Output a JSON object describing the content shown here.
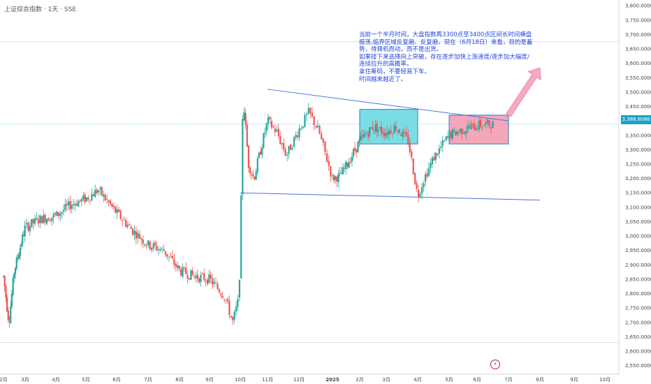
{
  "header": {
    "symbol_title": "上证综合指数 · 1天 · SSE"
  },
  "annotation": {
    "text": "当前一个半月时间，大盘指数再3300点至3400点区间长时间横盘振荡,临界区域反复磨、反复磨。现在（6月18日）来看，目的是蓄势，待择机而动，而不是出货。\n如果接下来选择向上突破，存在逐步加快上涨速度/逐步加大幅度/连续拉升的高概率。\n拿住筹码，不要轻易下车。\n时间越来越近了。"
  },
  "price_tag": {
    "label": "3,388.8086"
  },
  "colors": {
    "up": "#26a69a",
    "down": "#ef5350",
    "trend": "#4a73d8",
    "box1": "#4dd2dc",
    "box2": "#f08aa4",
    "arrow": "#f7a8c4",
    "price_line": "#1ba2c4"
  },
  "chart_data": {
    "type": "candlestick",
    "ylim": [
      2520,
      3820
    ],
    "y_ticks": [
      "3,800.0000",
      "3,750.0000",
      "3,700.0000",
      "3,650.0000",
      "3,600.0000",
      "3,550.0000",
      "3,500.0000",
      "3,450.0000",
      "3,400.0000",
      "3,350.0000",
      "3,300.0000",
      "3,250.0000",
      "3,200.0000",
      "3,150.0000",
      "3,100.0000",
      "3,050.0000",
      "3,000.0000",
      "2,950.0000",
      "2,900.0000",
      "2,850.0000",
      "2,800.0000",
      "2,750.0000",
      "2,700.0000",
      "2,650.0000",
      "2,600.0000",
      "2,550.0000"
    ],
    "x_ticks": [
      "2月",
      "3月",
      "4月",
      "5月",
      "6月",
      "7月",
      "8月",
      "9月",
      "10月",
      "11月",
      "12月",
      "2025",
      "2月",
      "3月",
      "4月",
      "5月",
      "6月",
      "7月",
      "8月",
      "9月",
      "10月"
    ],
    "anchors": [
      {
        "m": 0.0,
        "v": 2860
      },
      {
        "m": 0.25,
        "v": 2700
      },
      {
        "m": 0.5,
        "v": 2880
      },
      {
        "m": 1.0,
        "v": 3030
      },
      {
        "m": 1.5,
        "v": 3060
      },
      {
        "m": 2.0,
        "v": 3070
      },
      {
        "m": 2.5,
        "v": 3110
      },
      {
        "m": 3.0,
        "v": 3130
      },
      {
        "m": 3.4,
        "v": 3160
      },
      {
        "m": 3.7,
        "v": 3120
      },
      {
        "m": 4.0,
        "v": 3080
      },
      {
        "m": 4.5,
        "v": 3020
      },
      {
        "m": 5.0,
        "v": 2970
      },
      {
        "m": 5.5,
        "v": 2950
      },
      {
        "m": 6.0,
        "v": 2880
      },
      {
        "m": 6.5,
        "v": 2860
      },
      {
        "m": 7.0,
        "v": 2850
      },
      {
        "m": 7.5,
        "v": 2790
      },
      {
        "m": 7.75,
        "v": 2700
      },
      {
        "m": 7.95,
        "v": 2780
      },
      {
        "m": 8.0,
        "v": 2950
      },
      {
        "m": 8.05,
        "v": 3240
      },
      {
        "m": 8.1,
        "v": 3489
      },
      {
        "m": 8.3,
        "v": 3250
      },
      {
        "m": 8.5,
        "v": 3200
      },
      {
        "m": 9.0,
        "v": 3400
      },
      {
        "m": 9.3,
        "v": 3360
      },
      {
        "m": 9.6,
        "v": 3280
      },
      {
        "m": 10.0,
        "v": 3370
      },
      {
        "m": 10.3,
        "v": 3430
      },
      {
        "m": 10.6,
        "v": 3360
      },
      {
        "m": 11.0,
        "v": 3200
      },
      {
        "m": 11.3,
        "v": 3210
      },
      {
        "m": 11.6,
        "v": 3260
      },
      {
        "m": 12.0,
        "v": 3330
      },
      {
        "m": 12.5,
        "v": 3380
      },
      {
        "m": 13.0,
        "v": 3360
      },
      {
        "m": 13.3,
        "v": 3380
      },
      {
        "m": 13.7,
        "v": 3330
      },
      {
        "m": 14.0,
        "v": 3140
      },
      {
        "m": 14.2,
        "v": 3200
      },
      {
        "m": 14.5,
        "v": 3270
      },
      {
        "m": 15.0,
        "v": 3350
      },
      {
        "m": 15.5,
        "v": 3370
      },
      {
        "m": 16.0,
        "v": 3385
      },
      {
        "m": 16.5,
        "v": 3389
      }
    ],
    "volatility": 35,
    "trendlines": [
      {
        "from": [
          "2024-11",
          3510
        ],
        "to": [
          "2025-07",
          3400
        ]
      },
      {
        "from": [
          "2024-10",
          3150
        ],
        "to": [
          "2025-08",
          3125
        ]
      }
    ],
    "boxes": [
      {
        "from": [
          "2025-02",
          3320
        ],
        "to": [
          "2025-04",
          3440
        ]
      },
      {
        "from": [
          "2025-05",
          3320
        ],
        "to": [
          "2025-07",
          3420
        ]
      }
    ],
    "arrow": {
      "from": [
        "2025-07",
        3420
      ],
      "to": [
        "2025-08",
        3585
      ]
    },
    "last_price": 3388.8086,
    "upper_hline": 3675,
    "lower_hline": 2630
  }
}
